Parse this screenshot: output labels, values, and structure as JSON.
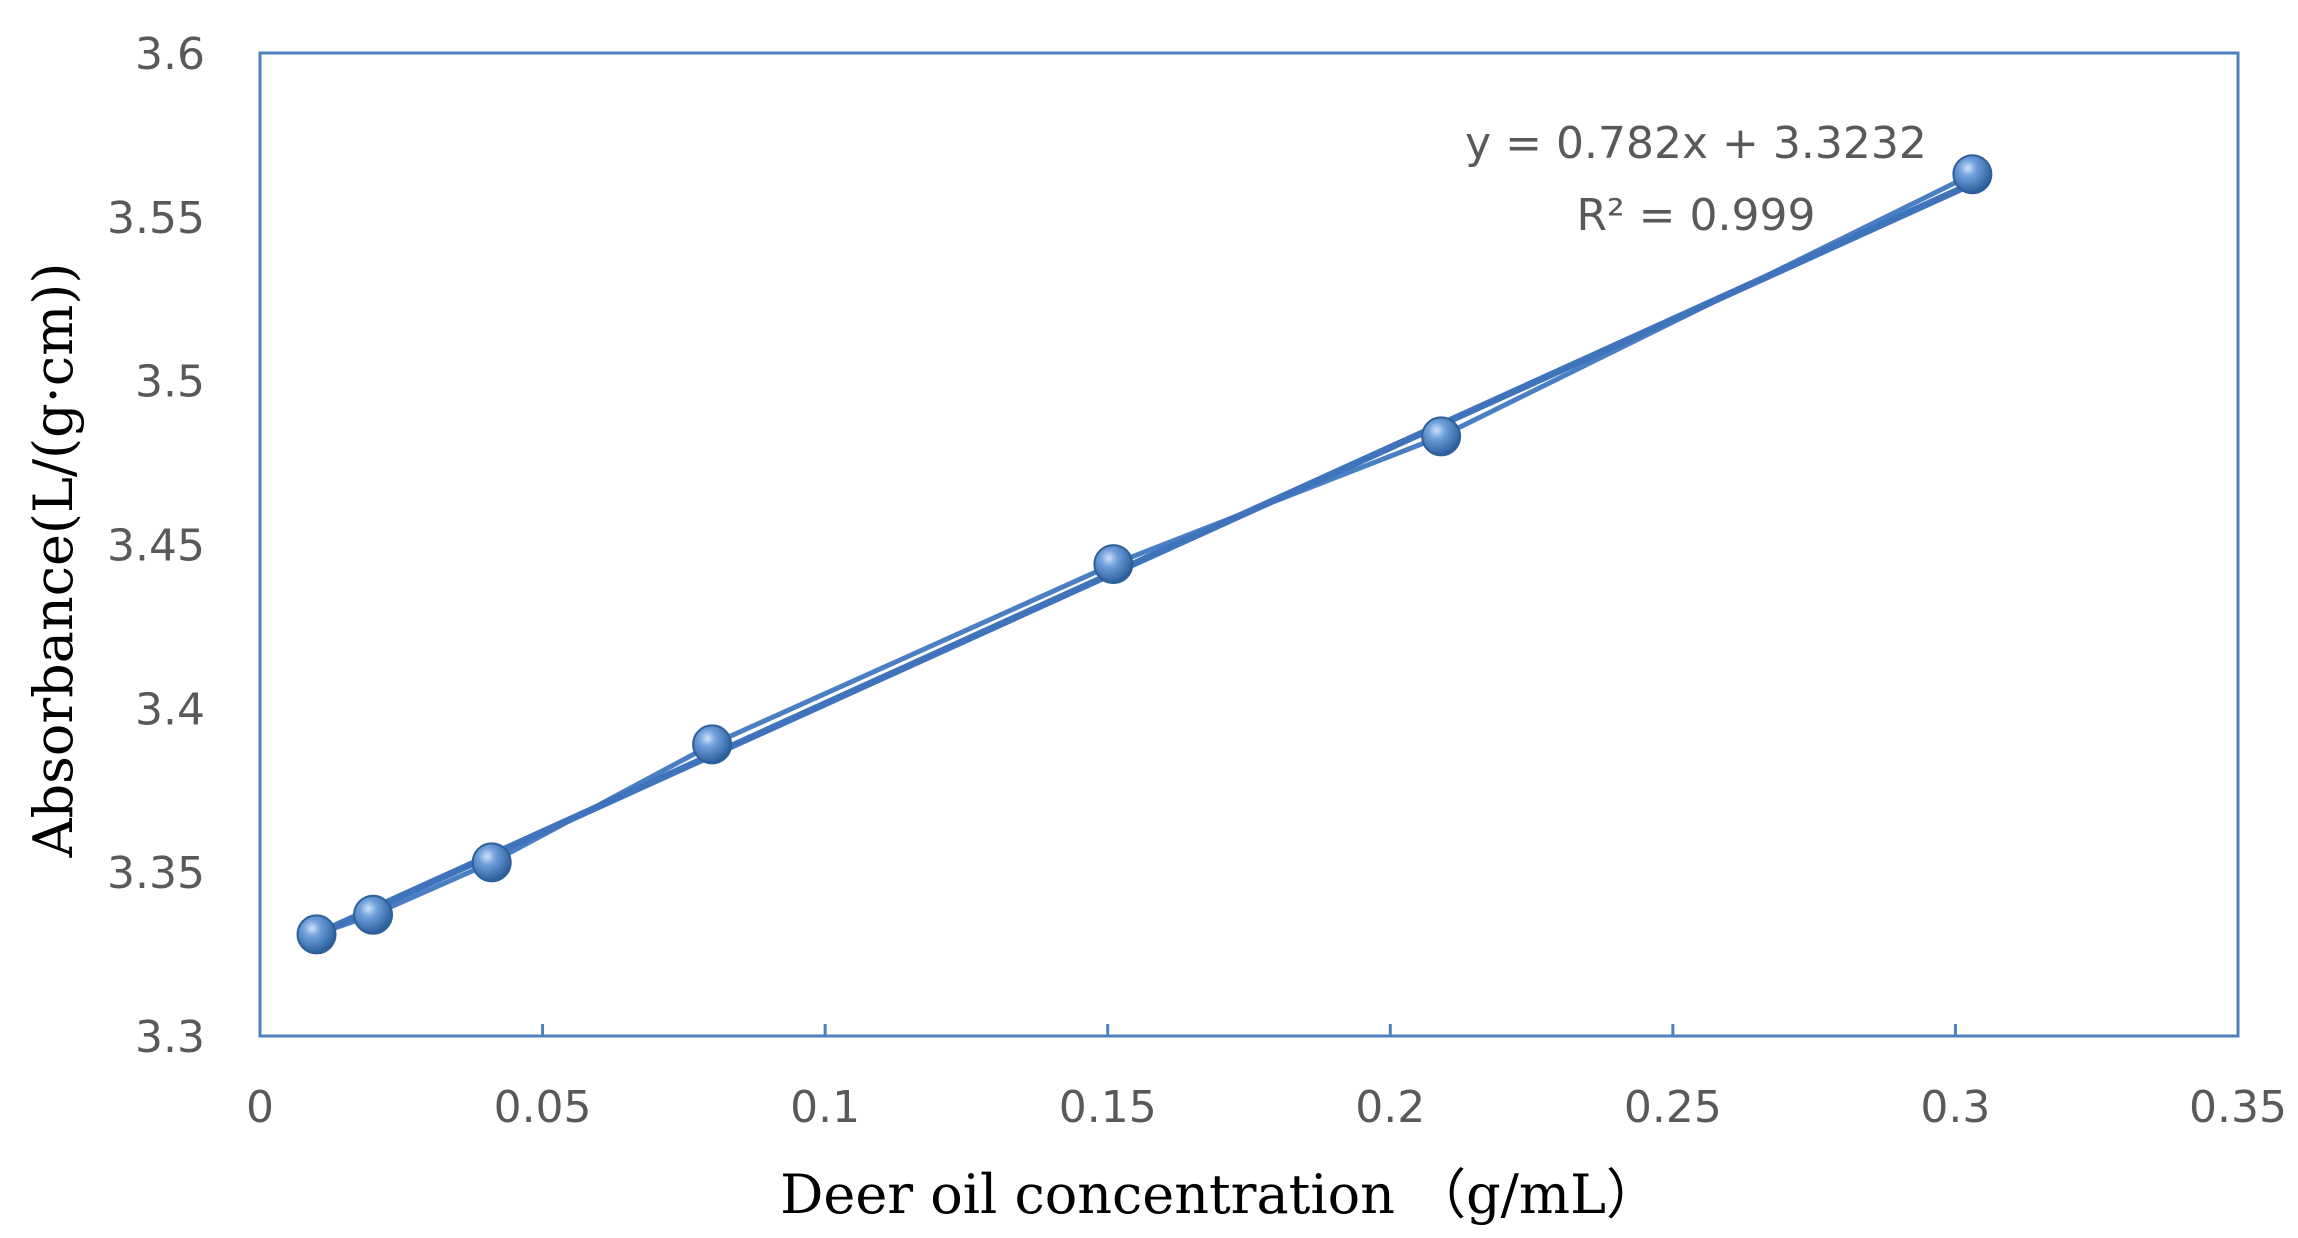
{
  "chart_data": {
    "type": "scatter",
    "title": "",
    "xlabel": "Deer oil concentration （g/mL）",
    "ylabel": "Absorbance(L/(g·cm))",
    "xlim": [
      0,
      0.35
    ],
    "ylim": [
      3.3,
      3.6
    ],
    "xticks": [
      "0",
      "0.05",
      "0.1",
      "0.15",
      "0.2",
      "0.25",
      "0.3",
      "0.35"
    ],
    "yticks": [
      "3.3",
      "3.35",
      "3.4",
      "3.45",
      "3.5",
      "3.55",
      "3.6"
    ],
    "xtick_values": [
      0,
      0.05,
      0.1,
      0.15,
      0.2,
      0.25,
      0.3,
      0.35
    ],
    "ytick_values": [
      3.3,
      3.35,
      3.4,
      3.45,
      3.5,
      3.55,
      3.6
    ],
    "grid": false,
    "series": [
      {
        "name": "Absorbance",
        "x": [
          0.01,
          0.02,
          0.041,
          0.08,
          0.151,
          0.209,
          0.303
        ],
        "y": [
          3.331,
          3.337,
          3.353,
          3.389,
          3.444,
          3.483,
          3.563
        ],
        "connected": true,
        "color": "#4a7fc4"
      }
    ],
    "trendline": {
      "slope": 0.782,
      "intercept": 3.3232,
      "x_range": [
        0.01,
        0.303
      ],
      "equation": "y = 0.782x + 3.3232",
      "r_squared": "R² = 0.999",
      "color": "#3f74bd"
    },
    "colors": {
      "axis": "#4f81bd",
      "marker": "#4a7fc4",
      "marker_edge": "#2f5f99"
    }
  }
}
